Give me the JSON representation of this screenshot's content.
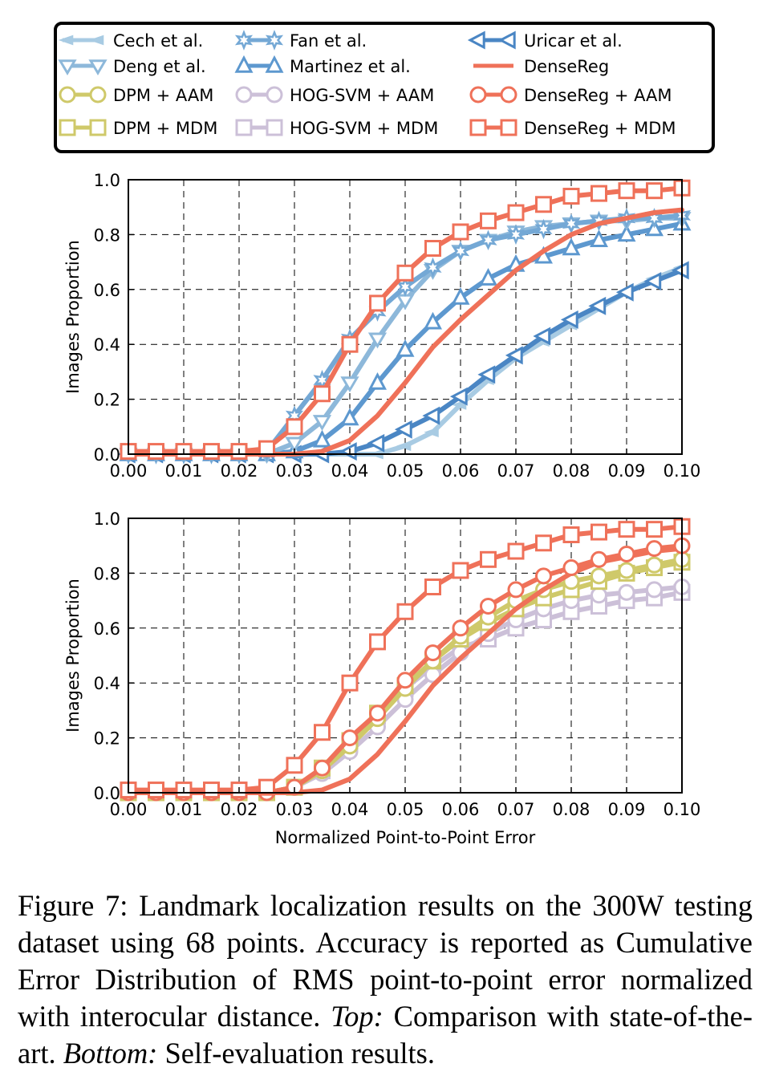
{
  "colors": {
    "cech": "#a8cbe3",
    "deng": "#8db8da",
    "fan": "#74a8d5",
    "martinez": "#5d98cf",
    "uricar": "#4a86c4",
    "dpm": "#cfc96a",
    "hog": "#ccc0d8",
    "densereg": "#ef7159",
    "frame": "#000000",
    "grid": "#000000"
  },
  "legend": {
    "entries": [
      {
        "key": "cech",
        "label": "Cech et al.",
        "marker": "tri-left-thin"
      },
      {
        "key": "fan",
        "label": "Fan et al.",
        "marker": "star"
      },
      {
        "key": "uricar",
        "label": "Uricar et al.",
        "marker": "tri-left"
      },
      {
        "key": "deng",
        "label": "Deng et al.",
        "marker": "tri-down"
      },
      {
        "key": "martinez",
        "label": "Martinez et al.",
        "marker": "tri-up"
      },
      {
        "key": "densereg",
        "label": "DenseReg",
        "marker": "none"
      },
      {
        "key": "dpm_aam",
        "label": "DPM + AAM",
        "marker": "circle"
      },
      {
        "key": "hog_aam",
        "label": "HOG-SVM + AAM",
        "marker": "circle"
      },
      {
        "key": "densereg_aam",
        "label": "DenseReg + AAM",
        "marker": "circle"
      },
      {
        "key": "dpm_mdm",
        "label": "DPM + MDM",
        "marker": "square"
      },
      {
        "key": "hog_mdm",
        "label": "HOG-SVM + MDM",
        "marker": "square"
      },
      {
        "key": "densereg_mdm",
        "label": "DenseReg + MDM",
        "marker": "square"
      }
    ]
  },
  "chart_data": [
    {
      "type": "line",
      "xlabel": "",
      "ylabel": "Images Proportion",
      "xlim": [
        0.0,
        0.1
      ],
      "ylim": [
        0.0,
        1.0
      ],
      "xticks": [
        "0.00",
        "0.01",
        "0.02",
        "0.03",
        "0.04",
        "0.05",
        "0.06",
        "0.07",
        "0.08",
        "0.09",
        "0.10"
      ],
      "yticks": [
        "0.0",
        "0.2",
        "0.4",
        "0.6",
        "0.8",
        "1.0"
      ],
      "grid": true,
      "series": [
        {
          "name": "Cech et al.",
          "color": "cech",
          "marker": "tri-left-thin",
          "x": [
            0.0,
            0.005,
            0.01,
            0.015,
            0.02,
            0.025,
            0.03,
            0.035,
            0.04,
            0.045,
            0.05,
            0.055,
            0.06,
            0.065,
            0.07,
            0.075,
            0.08,
            0.085,
            0.09,
            0.095,
            0.1
          ],
          "y": [
            0,
            0,
            0,
            0,
            0,
            0,
            0,
            0,
            0,
            0,
            0.03,
            0.08,
            0.18,
            0.27,
            0.35,
            0.41,
            0.47,
            0.53,
            0.59,
            0.64,
            0.68
          ]
        },
        {
          "name": "Uricar et al.",
          "color": "uricar",
          "marker": "tri-left",
          "x": [
            0.0,
            0.005,
            0.01,
            0.015,
            0.02,
            0.025,
            0.03,
            0.035,
            0.04,
            0.045,
            0.05,
            0.055,
            0.06,
            0.065,
            0.07,
            0.075,
            0.08,
            0.085,
            0.09,
            0.095,
            0.1
          ],
          "y": [
            0,
            0,
            0,
            0,
            0,
            0,
            0,
            0,
            0.01,
            0.04,
            0.09,
            0.14,
            0.21,
            0.29,
            0.36,
            0.43,
            0.49,
            0.54,
            0.59,
            0.63,
            0.67
          ]
        },
        {
          "name": "Martinez et al.",
          "color": "martinez",
          "marker": "tri-up",
          "x": [
            0.0,
            0.005,
            0.01,
            0.015,
            0.02,
            0.025,
            0.03,
            0.035,
            0.04,
            0.045,
            0.05,
            0.055,
            0.06,
            0.065,
            0.07,
            0.075,
            0.08,
            0.085,
            0.09,
            0.095,
            0.1
          ],
          "y": [
            0,
            0,
            0,
            0,
            0,
            0,
            0.01,
            0.05,
            0.13,
            0.26,
            0.38,
            0.48,
            0.57,
            0.64,
            0.69,
            0.72,
            0.75,
            0.78,
            0.8,
            0.82,
            0.84
          ]
        },
        {
          "name": "Deng et al.",
          "color": "deng",
          "marker": "tri-down",
          "x": [
            0.0,
            0.005,
            0.01,
            0.015,
            0.02,
            0.025,
            0.03,
            0.035,
            0.04,
            0.045,
            0.05,
            0.055,
            0.06,
            0.065,
            0.07,
            0.075,
            0.08,
            0.085,
            0.09,
            0.095,
            0.1
          ],
          "y": [
            0,
            0,
            0,
            0,
            0,
            0,
            0.04,
            0.12,
            0.26,
            0.42,
            0.56,
            0.67,
            0.74,
            0.78,
            0.81,
            0.83,
            0.84,
            0.85,
            0.85,
            0.86,
            0.86
          ]
        },
        {
          "name": "Fan et al.",
          "color": "fan",
          "marker": "star",
          "x": [
            0.0,
            0.005,
            0.01,
            0.015,
            0.02,
            0.025,
            0.03,
            0.035,
            0.04,
            0.045,
            0.05,
            0.055,
            0.06,
            0.065,
            0.07,
            0.075,
            0.08,
            0.085,
            0.09,
            0.095,
            0.1
          ],
          "y": [
            0,
            0,
            0,
            0,
            0,
            0.01,
            0.14,
            0.27,
            0.42,
            0.52,
            0.61,
            0.68,
            0.74,
            0.78,
            0.8,
            0.82,
            0.84,
            0.85,
            0.86,
            0.86,
            0.87
          ]
        },
        {
          "name": "DenseReg",
          "color": "densereg",
          "marker": "none",
          "x": [
            0.0,
            0.005,
            0.01,
            0.015,
            0.02,
            0.025,
            0.03,
            0.035,
            0.04,
            0.045,
            0.05,
            0.055,
            0.06,
            0.065,
            0.07,
            0.075,
            0.08,
            0.085,
            0.09,
            0.095,
            0.1
          ],
          "y": [
            0,
            0,
            0,
            0,
            0,
            0,
            0,
            0.01,
            0.05,
            0.14,
            0.26,
            0.39,
            0.49,
            0.58,
            0.67,
            0.74,
            0.8,
            0.84,
            0.86,
            0.88,
            0.89
          ]
        },
        {
          "name": "DenseReg + MDM",
          "color": "densereg",
          "marker": "square",
          "x": [
            0.0,
            0.005,
            0.01,
            0.015,
            0.02,
            0.025,
            0.03,
            0.035,
            0.04,
            0.045,
            0.05,
            0.055,
            0.06,
            0.065,
            0.07,
            0.075,
            0.08,
            0.085,
            0.09,
            0.095,
            0.1
          ],
          "y": [
            0.01,
            0.01,
            0.01,
            0.01,
            0.01,
            0.02,
            0.1,
            0.22,
            0.4,
            0.55,
            0.66,
            0.75,
            0.81,
            0.85,
            0.88,
            0.91,
            0.94,
            0.95,
            0.96,
            0.96,
            0.97
          ]
        }
      ]
    },
    {
      "type": "line",
      "xlabel": "Normalized Point-to-Point Error",
      "ylabel": "Images Proportion",
      "xlim": [
        0.0,
        0.1
      ],
      "ylim": [
        0.0,
        1.0
      ],
      "xticks": [
        "0.00",
        "0.01",
        "0.02",
        "0.03",
        "0.04",
        "0.05",
        "0.06",
        "0.07",
        "0.08",
        "0.09",
        "0.10"
      ],
      "yticks": [
        "0.0",
        "0.2",
        "0.4",
        "0.6",
        "0.8",
        "1.0"
      ],
      "grid": true,
      "series": [
        {
          "name": "HOG-SVM + MDM",
          "color": "hog",
          "marker": "square",
          "x": [
            0.0,
            0.005,
            0.01,
            0.015,
            0.02,
            0.025,
            0.03,
            0.035,
            0.04,
            0.045,
            0.05,
            0.055,
            0.06,
            0.065,
            0.07,
            0.075,
            0.08,
            0.085,
            0.09,
            0.095,
            0.1
          ],
          "y": [
            0,
            0,
            0,
            0,
            0,
            0,
            0.02,
            0.08,
            0.18,
            0.28,
            0.38,
            0.46,
            0.53,
            0.56,
            0.6,
            0.63,
            0.66,
            0.68,
            0.7,
            0.71,
            0.73
          ]
        },
        {
          "name": "HOG-SVM + AAM",
          "color": "hog",
          "marker": "circle",
          "x": [
            0.0,
            0.005,
            0.01,
            0.015,
            0.02,
            0.025,
            0.03,
            0.035,
            0.04,
            0.045,
            0.05,
            0.055,
            0.06,
            0.065,
            0.07,
            0.075,
            0.08,
            0.085,
            0.09,
            0.095,
            0.1
          ],
          "y": [
            0,
            0,
            0,
            0,
            0,
            0,
            0.02,
            0.07,
            0.15,
            0.24,
            0.34,
            0.43,
            0.51,
            0.58,
            0.63,
            0.67,
            0.7,
            0.72,
            0.73,
            0.74,
            0.75
          ]
        },
        {
          "name": "DPM + MDM",
          "color": "dpm",
          "marker": "square",
          "x": [
            0.0,
            0.005,
            0.01,
            0.015,
            0.02,
            0.025,
            0.03,
            0.035,
            0.04,
            0.045,
            0.05,
            0.055,
            0.06,
            0.065,
            0.07,
            0.075,
            0.08,
            0.085,
            0.09,
            0.095,
            0.1
          ],
          "y": [
            0,
            0,
            0,
            0,
            0,
            0,
            0.02,
            0.09,
            0.19,
            0.29,
            0.39,
            0.48,
            0.56,
            0.62,
            0.67,
            0.71,
            0.74,
            0.77,
            0.8,
            0.82,
            0.84
          ]
        },
        {
          "name": "DPM + AAM",
          "color": "dpm",
          "marker": "circle",
          "x": [
            0.0,
            0.005,
            0.01,
            0.015,
            0.02,
            0.025,
            0.03,
            0.035,
            0.04,
            0.045,
            0.05,
            0.055,
            0.06,
            0.065,
            0.07,
            0.075,
            0.08,
            0.085,
            0.09,
            0.095,
            0.1
          ],
          "y": [
            0,
            0,
            0,
            0,
            0,
            0,
            0.02,
            0.08,
            0.17,
            0.27,
            0.38,
            0.48,
            0.57,
            0.64,
            0.7,
            0.74,
            0.77,
            0.79,
            0.81,
            0.83,
            0.85
          ]
        },
        {
          "name": "DenseReg",
          "color": "densereg",
          "marker": "none",
          "x": [
            0.0,
            0.005,
            0.01,
            0.015,
            0.02,
            0.025,
            0.03,
            0.035,
            0.04,
            0.045,
            0.05,
            0.055,
            0.06,
            0.065,
            0.07,
            0.075,
            0.08,
            0.085,
            0.09,
            0.095,
            0.1
          ],
          "y": [
            0,
            0,
            0,
            0,
            0,
            0,
            0,
            0.01,
            0.05,
            0.14,
            0.26,
            0.39,
            0.49,
            0.58,
            0.67,
            0.74,
            0.8,
            0.84,
            0.86,
            0.88,
            0.89
          ]
        },
        {
          "name": "DenseReg + AAM",
          "color": "densereg",
          "marker": "circle",
          "x": [
            0.0,
            0.005,
            0.01,
            0.015,
            0.02,
            0.025,
            0.03,
            0.035,
            0.04,
            0.045,
            0.05,
            0.055,
            0.06,
            0.065,
            0.07,
            0.075,
            0.08,
            0.085,
            0.09,
            0.095,
            0.1
          ],
          "y": [
            0,
            0,
            0,
            0,
            0,
            0,
            0.02,
            0.09,
            0.2,
            0.29,
            0.41,
            0.51,
            0.6,
            0.68,
            0.74,
            0.79,
            0.82,
            0.85,
            0.87,
            0.89,
            0.9
          ]
        },
        {
          "name": "DenseReg + MDM",
          "color": "densereg",
          "marker": "square",
          "x": [
            0.0,
            0.005,
            0.01,
            0.015,
            0.02,
            0.025,
            0.03,
            0.035,
            0.04,
            0.045,
            0.05,
            0.055,
            0.06,
            0.065,
            0.07,
            0.075,
            0.08,
            0.085,
            0.09,
            0.095,
            0.1
          ],
          "y": [
            0.01,
            0.01,
            0.01,
            0.01,
            0.01,
            0.02,
            0.1,
            0.22,
            0.4,
            0.55,
            0.66,
            0.75,
            0.81,
            0.85,
            0.88,
            0.91,
            0.94,
            0.95,
            0.96,
            0.96,
            0.97
          ]
        }
      ]
    }
  ],
  "caption": {
    "figure_label": "Figure 7:",
    "text": "Landmark localization results on the 300W testing dataset using 68 points. Accuracy is reported as Cumulative Error Distribution of RMS point-to-point error normalized with interocular distance.",
    "top_label": "Top:",
    "top_text": "Comparison with state-of-the-art.",
    "bottom_label": "Bottom:",
    "bottom_text": "Self-evaluation results."
  }
}
